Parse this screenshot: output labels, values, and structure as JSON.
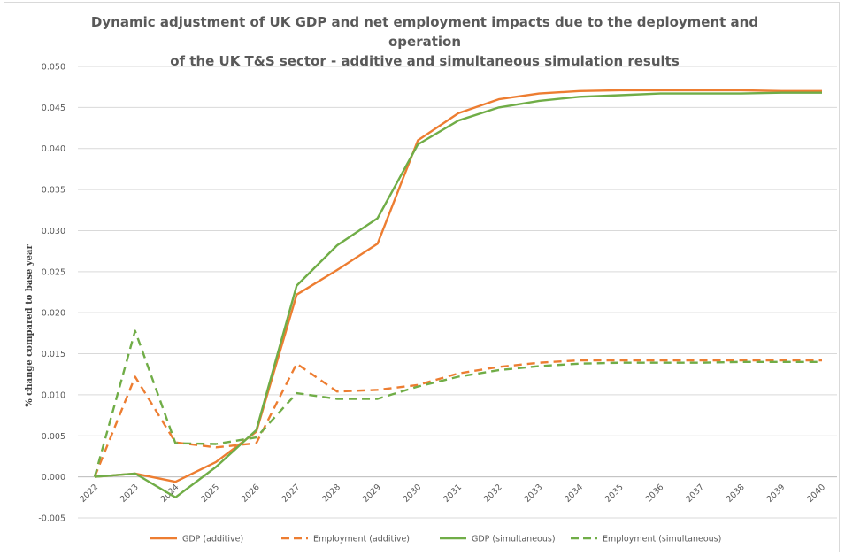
{
  "chart_data": {
    "type": "line",
    "title": "Dynamic adjustment of UK GDP and net employment impacts due to the deployment and operation of the UK T&S sector - additive and simultaneous simulation results",
    "title_lines": [
      "Dynamic adjustment of UK GDP and net employment impacts due to the deployment and operation",
      "of the UK T&S sector - additive and simultaneous simulation results"
    ],
    "xlabel": "",
    "ylabel": "% change compared to base year",
    "ylim": [
      -0.005,
      0.05
    ],
    "y_ticks": [
      "-0.005",
      "0.000",
      "0.005",
      "0.010",
      "0.015",
      "0.020",
      "0.025",
      "0.030",
      "0.035",
      "0.040",
      "0.045",
      "0.050"
    ],
    "y_tick_values": [
      -0.005,
      0,
      0.005,
      0.01,
      0.015,
      0.02,
      0.025,
      0.03,
      0.035,
      0.04,
      0.045,
      0.05
    ],
    "x": [
      "2022",
      "2023",
      "2024",
      "2025",
      "2026",
      "2027",
      "2028",
      "2029",
      "2030",
      "2031",
      "2032",
      "2033",
      "2034",
      "2035",
      "2036",
      "2037",
      "2038",
      "2039",
      "2040"
    ],
    "grid": "horizontal",
    "legend_position": "bottom",
    "series": [
      {
        "name": "GDP (additive)",
        "color": "#ED7D31",
        "dashed": false,
        "values": [
          0.0,
          0.0004,
          -0.0006,
          0.0018,
          0.0055,
          0.0222,
          0.0252,
          0.0284,
          0.041,
          0.0443,
          0.046,
          0.0467,
          0.047,
          0.0471,
          0.0471,
          0.0471,
          0.0471,
          0.047,
          0.047
        ]
      },
      {
        "name": "Employment (additive)",
        "color": "#ED7D31",
        "dashed": true,
        "values": [
          0.0,
          0.0122,
          0.0042,
          0.0036,
          0.0041,
          0.0138,
          0.0104,
          0.0106,
          0.0112,
          0.0126,
          0.0134,
          0.0139,
          0.0142,
          0.0142,
          0.0142,
          0.0142,
          0.0142,
          0.0142,
          0.0142
        ]
      },
      {
        "name": "GDP (simultaneous)",
        "color": "#70AD47",
        "dashed": false,
        "values": [
          0.0,
          0.0004,
          -0.0025,
          0.0012,
          0.0057,
          0.0233,
          0.0282,
          0.0315,
          0.0405,
          0.0434,
          0.045,
          0.0458,
          0.0463,
          0.0465,
          0.0467,
          0.0467,
          0.0467,
          0.0468,
          0.0468
        ]
      },
      {
        "name": "Employment (simultaneous)",
        "color": "#70AD47",
        "dashed": true,
        "values": [
          0.0,
          0.0178,
          0.0041,
          0.004,
          0.0048,
          0.0102,
          0.0095,
          0.0095,
          0.011,
          0.0122,
          0.013,
          0.0135,
          0.0138,
          0.0139,
          0.0139,
          0.0139,
          0.014,
          0.014,
          0.014
        ]
      }
    ]
  }
}
